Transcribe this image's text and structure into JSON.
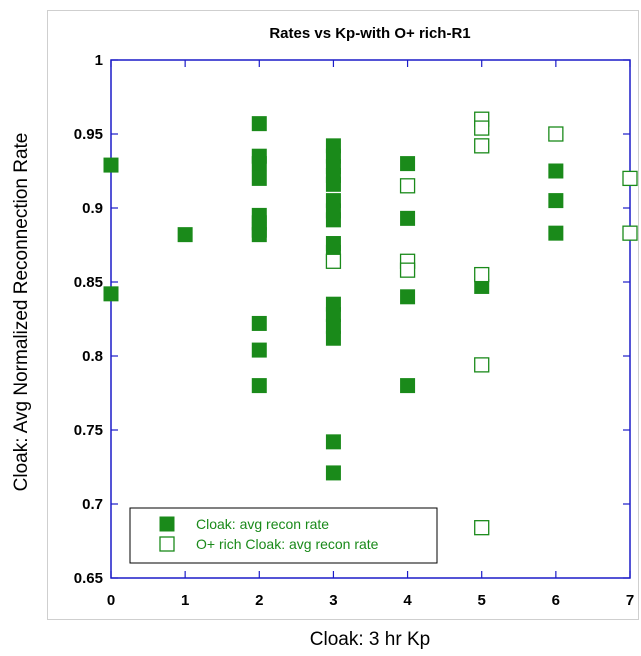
{
  "chart_data": {
    "type": "scatter",
    "title": "Rates vs Kp-with O+ rich-R1",
    "xlabel": "Cloak: 3 hr Kp",
    "ylabel": "Cloak: Avg Normalized Reconnection Rate",
    "xlim": [
      0,
      7
    ],
    "ylim": [
      0.65,
      1
    ],
    "xticks": [
      "0",
      "1",
      "2",
      "3",
      "4",
      "5",
      "6",
      "7"
    ],
    "yticks": [
      "0.65",
      "0.7",
      "0.75",
      "0.8",
      "0.85",
      "0.9",
      "0.95",
      "1"
    ],
    "legend_position": "bottom-left",
    "grid": false,
    "colors": {
      "series": "#1a8a1a",
      "axis": "#1c1cc8"
    },
    "series": [
      {
        "name": "Cloak: avg recon rate",
        "marker": "filled-square",
        "points": [
          [
            0,
            0.929
          ],
          [
            0,
            0.842
          ],
          [
            1,
            0.882
          ],
          [
            2,
            0.957
          ],
          [
            2,
            0.935
          ],
          [
            2,
            0.93
          ],
          [
            2,
            0.92
          ],
          [
            2,
            0.895
          ],
          [
            2,
            0.89
          ],
          [
            2,
            0.885
          ],
          [
            2,
            0.882
          ],
          [
            2,
            0.822
          ],
          [
            2,
            0.804
          ],
          [
            2,
            0.78
          ],
          [
            3,
            0.942
          ],
          [
            3,
            0.935
          ],
          [
            3,
            0.928
          ],
          [
            3,
            0.922
          ],
          [
            3,
            0.916
          ],
          [
            3,
            0.905
          ],
          [
            3,
            0.898
          ],
          [
            3,
            0.892
          ],
          [
            3,
            0.876
          ],
          [
            3,
            0.87
          ],
          [
            3,
            0.835
          ],
          [
            3,
            0.828
          ],
          [
            3,
            0.82
          ],
          [
            3,
            0.812
          ],
          [
            3,
            0.742
          ],
          [
            3,
            0.721
          ],
          [
            4,
            0.93
          ],
          [
            4,
            0.893
          ],
          [
            4,
            0.84
          ],
          [
            4,
            0.78
          ],
          [
            5,
            0.847
          ],
          [
            6,
            0.925
          ],
          [
            6,
            0.905
          ],
          [
            6,
            0.883
          ]
        ]
      },
      {
        "name": "O+ rich Cloak: avg recon rate",
        "marker": "open-square",
        "points": [
          [
            3,
            0.864
          ],
          [
            4,
            0.915
          ],
          [
            4,
            0.864
          ],
          [
            4,
            0.858
          ],
          [
            5,
            0.96
          ],
          [
            5,
            0.954
          ],
          [
            5,
            0.942
          ],
          [
            5,
            0.855
          ],
          [
            5,
            0.794
          ],
          [
            5,
            0.684
          ],
          [
            6,
            0.95
          ],
          [
            7,
            0.92
          ],
          [
            7,
            0.883
          ]
        ]
      }
    ]
  }
}
